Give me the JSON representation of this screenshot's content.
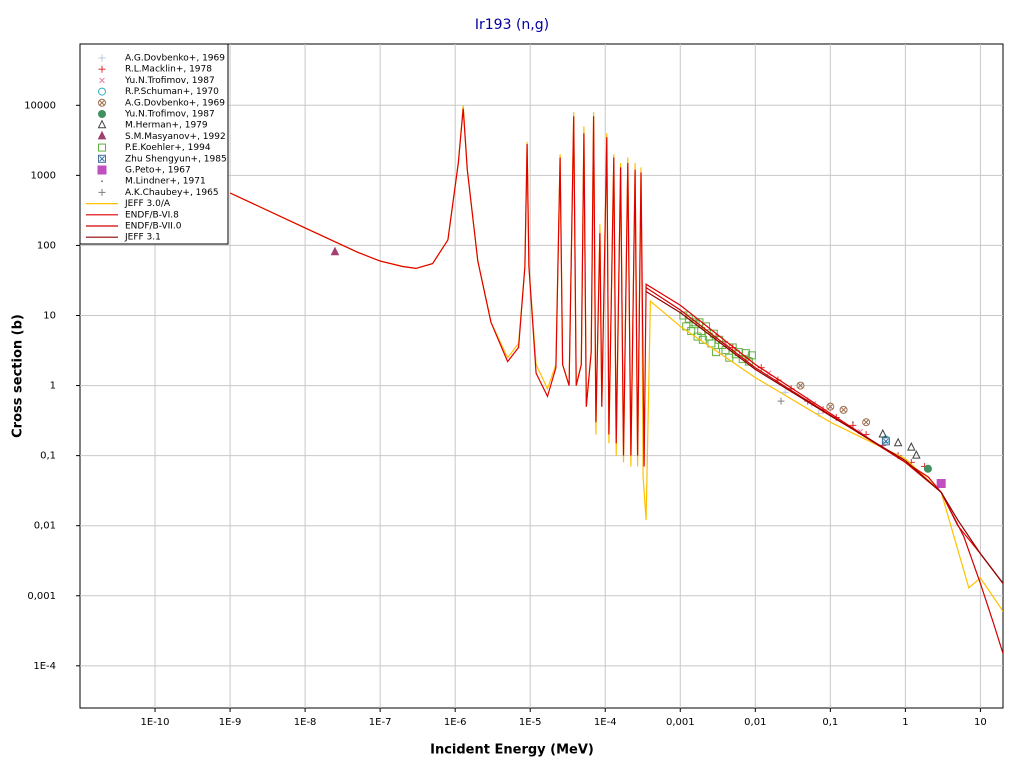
{
  "chart_data": {
    "type": "scatter",
    "title": "Ir193 (n,g)",
    "x_label": "Incident Energy (MeV)",
    "y_label": "Cross section (b)",
    "x_scale": "log",
    "y_scale": "log",
    "grid": true,
    "legend": "upper left",
    "xlim": [
      1e-11,
      20
    ],
    "ylim": [
      2.5e-05,
      75000
    ],
    "xticks": [
      {
        "value": 1e-10,
        "label": "1E-10"
      },
      {
        "value": 1e-09,
        "label": "1E-9"
      },
      {
        "value": 1e-08,
        "label": "1E-8"
      },
      {
        "value": 1e-07,
        "label": "1E-7"
      },
      {
        "value": 1e-06,
        "label": "1E-6"
      },
      {
        "value": 1e-05,
        "label": "1E-5"
      },
      {
        "value": 0.0001,
        "label": "1E-4"
      },
      {
        "value": 0.001,
        "label": "0,001"
      },
      {
        "value": 0.01,
        "label": "0,01"
      },
      {
        "value": 0.1,
        "label": "0,1"
      },
      1,
      10
    ],
    "yticks": [
      {
        "value": 0.0001,
        "label": "1E-4"
      },
      {
        "value": 0.001,
        "label": "0,001"
      },
      {
        "value": 0.01,
        "label": "0,01"
      },
      {
        "value": 0.1,
        "label": "0,1"
      },
      1,
      10,
      100,
      1000,
      10000
    ],
    "series": [
      {
        "name": "A.G.Dovbenko+, 1969",
        "marker": "plus",
        "color": "#b8c8e0",
        "x": [
          0.025,
          0.07
        ],
        "values": [
          0.8,
          0.4
        ]
      },
      {
        "name": "R.L.Macklin+, 1978",
        "marker": "plus",
        "color": "#e03030",
        "x": [
          0.003,
          0.005,
          0.008,
          0.012,
          0.02,
          0.03,
          0.05,
          0.08,
          0.12,
          0.2,
          0.3,
          0.5,
          0.8,
          1.2,
          1.8
        ],
        "values": [
          5,
          3.5,
          2.5,
          1.8,
          1.2,
          0.9,
          0.6,
          0.45,
          0.35,
          0.27,
          0.2,
          0.14,
          0.1,
          0.08,
          0.07
        ]
      },
      {
        "name": "Yu.N.Trofimov, 1987",
        "marker": "x",
        "color": "#e080a0",
        "x": [
          0.004,
          0.015,
          0.06,
          0.25
        ],
        "values": [
          4,
          1.5,
          0.55,
          0.22
        ]
      },
      {
        "name": "R.P.Schuman+, 1970",
        "marker": "circle",
        "color": "#30b0c0",
        "x": [
          0.55
        ],
        "values": [
          0.17
        ]
      },
      {
        "name": "A.G.Dovbenko+, 1969",
        "marker": "circle-x",
        "color": "#a07050",
        "x": [
          0.04,
          0.1,
          0.15,
          0.3
        ],
        "values": [
          1,
          0.5,
          0.45,
          0.3
        ]
      },
      {
        "name": "Yu.N.Trofimov, 1987",
        "marker": "filled-circle",
        "color": "#409060",
        "x": [
          2
        ],
        "values": [
          0.065
        ]
      },
      {
        "name": "M.Herman+, 1979",
        "marker": "triangle",
        "color": "#404040",
        "x": [
          0.5,
          0.8,
          1.2,
          1.4
        ],
        "values": [
          0.2,
          0.15,
          0.13,
          0.1
        ]
      },
      {
        "name": "S.M.Masyanov+, 1992",
        "marker": "filled-triangle",
        "color": "#a04070",
        "x": [
          2.5e-08
        ],
        "values": [
          80
        ]
      },
      {
        "name": "P.E.Koehler+, 1994",
        "marker": "square",
        "color": "#60b040",
        "x": [
          0.0011,
          0.0012,
          0.0013,
          0.0014,
          0.0015,
          0.0016,
          0.0017,
          0.0018,
          0.0019,
          0.002,
          0.0022,
          0.0024,
          0.0026,
          0.0028,
          0.003,
          0.0033,
          0.0036,
          0.004,
          0.0045,
          0.005,
          0.0055,
          0.006,
          0.0068,
          0.0075,
          0.0082,
          0.009
        ],
        "values": [
          10,
          7,
          9,
          6,
          8,
          7.5,
          5,
          8,
          6,
          4.5,
          7,
          5,
          4,
          5.5,
          3,
          4.5,
          3.8,
          3.2,
          2.5,
          3.5,
          2.8,
          3,
          2.4,
          2.9,
          2.2,
          2.7
        ]
      },
      {
        "name": "Zhu Shengyun+, 1985",
        "marker": "square-x",
        "color": "#4070a0",
        "x": [
          0.55
        ],
        "values": [
          0.16
        ]
      },
      {
        "name": "G.Peto+, 1967",
        "marker": "filled-square",
        "color": "#c050c0",
        "x": [
          3
        ],
        "values": [
          0.04
        ]
      },
      {
        "name": "M.Lindner+, 1971",
        "marker": "dot",
        "color": "#808080",
        "x": [
          0.03,
          0.2
        ],
        "values": [
          0.9,
          0.3
        ]
      },
      {
        "name": "A.K.Chaubey+, 1965",
        "marker": "plus",
        "color": "#808080",
        "x": [
          0.022
        ],
        "values": [
          0.6
        ]
      },
      {
        "name": "JEFF 3.0/A",
        "marker": "line",
        "color": "#ffc000",
        "x": [
          1e-09,
          1e-08,
          5e-08,
          1e-07,
          2e-07,
          3e-07,
          5e-07,
          8e-07,
          1.1e-06,
          1.28e-06,
          1.45e-06,
          2e-06,
          3e-06,
          5e-06,
          7e-06,
          8.5e-06,
          9.1e-06,
          9.6e-06,
          1.2e-05,
          1.7e-05,
          2.2e-05,
          2.5e-05,
          2.7e-05,
          3.3e-05,
          3.8e-05,
          4.1e-05,
          4.8e-05,
          5.2e-05,
          5.6e-05,
          6.5e-05,
          7e-05,
          7.5e-05,
          8.5e-05,
          9e-05,
          0.000105,
          0.000112,
          0.00013,
          0.00014,
          0.00016,
          0.000175,
          0.0002,
          0.00022,
          0.00025,
          0.00027,
          0.0003,
          0.00032,
          0.00035,
          0.0004,
          0.001,
          0.01,
          0.1,
          1,
          3,
          7,
          10,
          20
        ],
        "values": [
          560,
          178,
          80,
          60,
          50,
          47,
          55,
          120,
          1500,
          10000,
          1200,
          60,
          8,
          2.5,
          4,
          50,
          3000,
          50,
          2,
          0.9,
          2,
          2000,
          2,
          1,
          8000,
          1,
          2,
          5000,
          0.5,
          3,
          8000,
          0.2,
          200,
          0.5,
          4000,
          0.15,
          2000,
          0.1,
          1500,
          0.08,
          1800,
          0.07,
          1500,
          0.07,
          1300,
          0.05,
          0.012,
          16,
          7,
          1.3,
          0.3,
          0.09,
          0.03,
          0.0013,
          0.0018,
          0.0006
        ]
      },
      {
        "name": "ENDF/B-VI.8",
        "marker": "line",
        "color": "#e00000",
        "x": [
          1e-09,
          1e-08,
          5e-08,
          1e-07,
          2e-07,
          3e-07,
          5e-07,
          8e-07,
          1.1e-06,
          1.28e-06,
          1.45e-06,
          2e-06,
          3e-06,
          5e-06,
          7e-06,
          8.5e-06,
          9.1e-06,
          9.6e-06,
          1.2e-05,
          1.7e-05,
          2.2e-05,
          2.5e-05,
          2.7e-05,
          3.3e-05,
          3.8e-05,
          4.1e-05,
          4.8e-05,
          5.2e-05,
          5.6e-05,
          6.5e-05,
          7e-05,
          7.5e-05,
          8.5e-05,
          9e-05,
          0.000105,
          0.000112,
          0.00013,
          0.00014,
          0.00016,
          0.000175,
          0.0002,
          0.00022,
          0.00025,
          0.00027,
          0.0003,
          0.00033,
          0.00035,
          0.001,
          0.01,
          0.1,
          1,
          2,
          3,
          5,
          10,
          20
        ],
        "values": [
          560,
          178,
          80,
          60,
          50,
          47,
          55,
          120,
          1500,
          9000,
          1200,
          60,
          8,
          2.2,
          3.5,
          50,
          2800,
          50,
          1.5,
          0.7,
          1.8,
          1800,
          2,
          1,
          7000,
          1,
          2,
          4000,
          0.5,
          3,
          7000,
          0.3,
          150,
          0.5,
          3500,
          0.2,
          1800,
          0.15,
          1300,
          0.1,
          1500,
          0.1,
          1200,
          0.1,
          1100,
          0.07,
          28,
          14,
          2,
          0.4,
          0.08,
          0.05,
          0.03,
          0.01,
          0.004,
          0.0015
        ]
      },
      {
        "name": "ENDF/B-VII.0",
        "marker": "line",
        "color": "#d00000",
        "x": [
          0.00035,
          0.001,
          0.01,
          0.1,
          1,
          3,
          6,
          10,
          15,
          20
        ],
        "values": [
          25,
          12,
          1.8,
          0.38,
          0.08,
          0.03,
          0.007,
          0.0015,
          0.0004,
          0.00015
        ]
      },
      {
        "name": "JEFF 3.1",
        "marker": "line",
        "color": "#900000",
        "x": [
          0.00035,
          0.001,
          0.01,
          0.1,
          1,
          3,
          5,
          10,
          20
        ],
        "values": [
          22,
          11,
          1.7,
          0.37,
          0.085,
          0.03,
          0.012,
          0.004,
          0.0015
        ]
      }
    ]
  }
}
